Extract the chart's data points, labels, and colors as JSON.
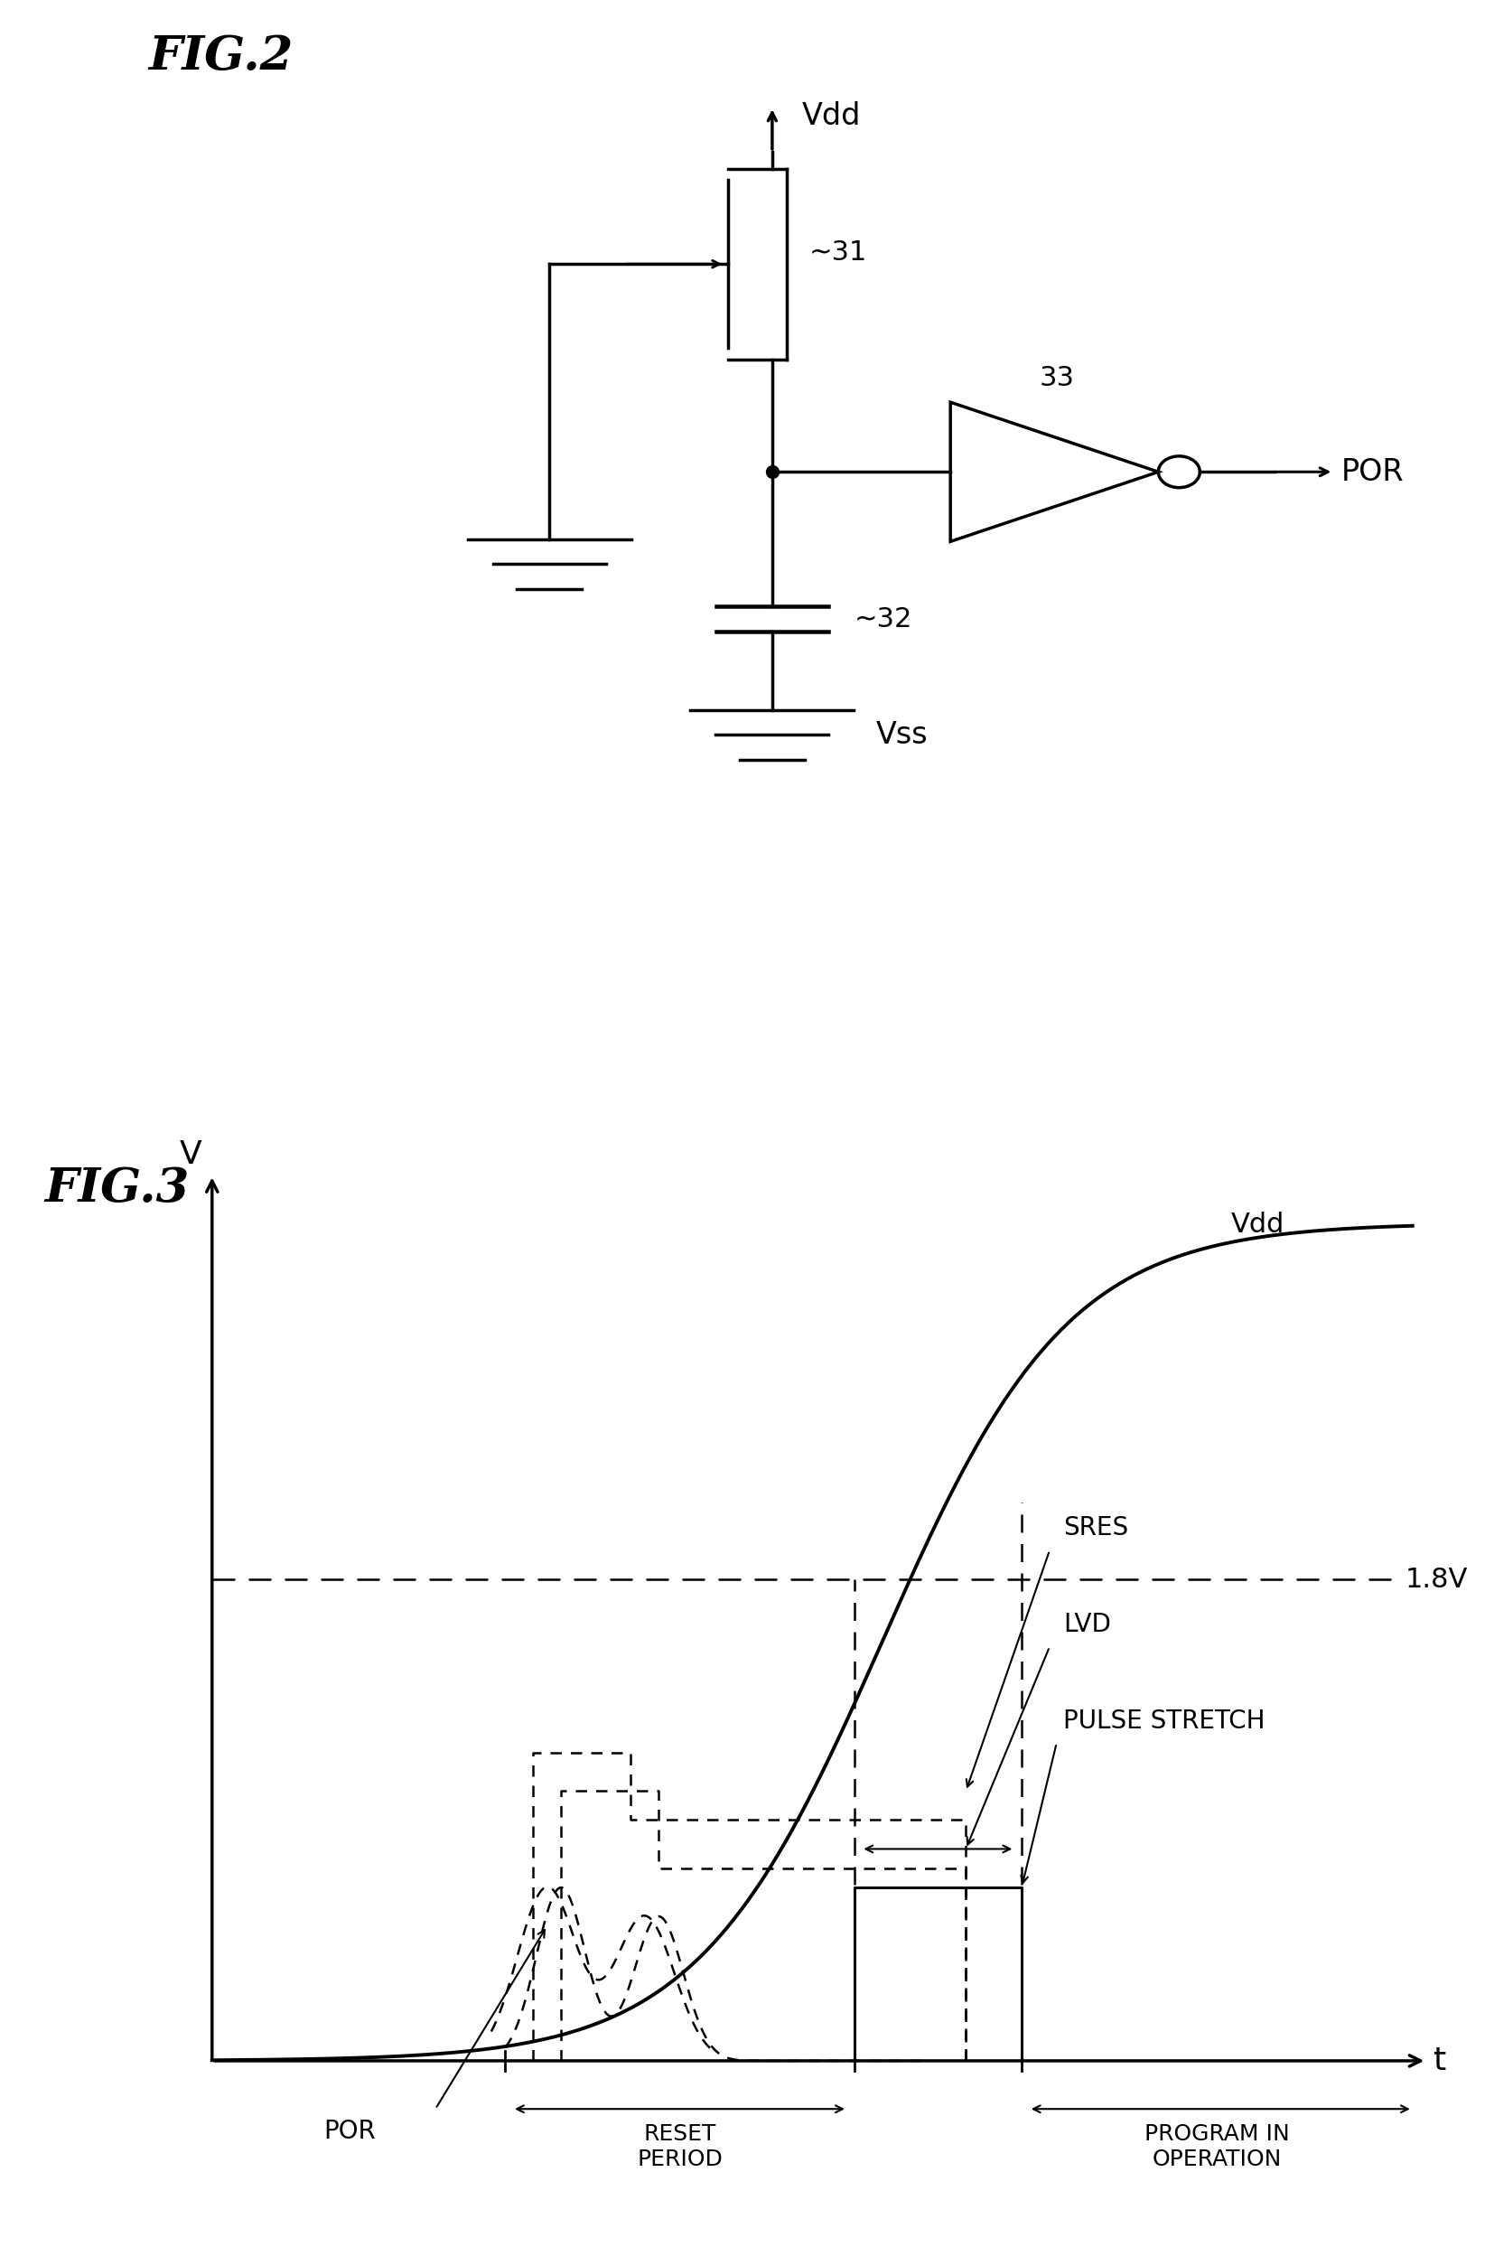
{
  "fig2_title": "FIG.2",
  "fig3_title": "FIG.3",
  "fig2_labels": {
    "vdd": "Vdd",
    "vss": "Vss",
    "mosfet": "31",
    "cap": "32",
    "inv": "33",
    "por": "POR"
  },
  "fig3_labels": {
    "v_axis": "V",
    "t_axis": "t",
    "vdd": "Vdd",
    "vref": "1.8V",
    "sres": "SRES",
    "lvd": "LVD",
    "pulse_stretch": "PULSE STRETCH",
    "por": "POR",
    "reset_period": "RESET\nPERIOD",
    "program_in_op": "PROGRAM IN\nOPERATION"
  },
  "bg_color": "#ffffff",
  "line_color": "#000000"
}
